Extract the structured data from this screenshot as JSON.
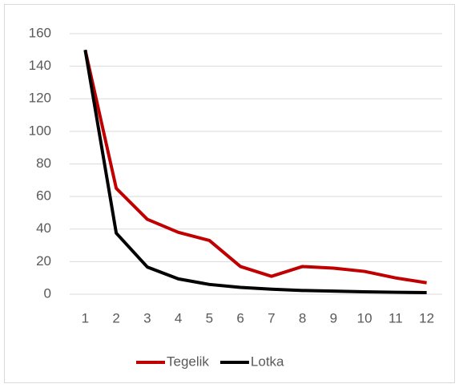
{
  "chart_data": {
    "type": "line",
    "categories": [
      "1",
      "2",
      "3",
      "4",
      "5",
      "6",
      "7",
      "8",
      "9",
      "10",
      "11",
      "12"
    ],
    "series": [
      {
        "name": "Tegelik",
        "color": "#c00000",
        "values": [
          150,
          65,
          46,
          38,
          33,
          17,
          11,
          17,
          16,
          14,
          10,
          7
        ]
      },
      {
        "name": "Lotka",
        "color": "#000000",
        "values": [
          150,
          37.5,
          16.7,
          9.4,
          6,
          4.2,
          3.1,
          2.3,
          1.9,
          1.5,
          1.2,
          1
        ]
      }
    ],
    "ylim": [
      0,
      160
    ],
    "yticks": [
      0,
      20,
      40,
      60,
      80,
      100,
      120,
      140,
      160
    ],
    "grid": true,
    "legend": "bottom"
  }
}
